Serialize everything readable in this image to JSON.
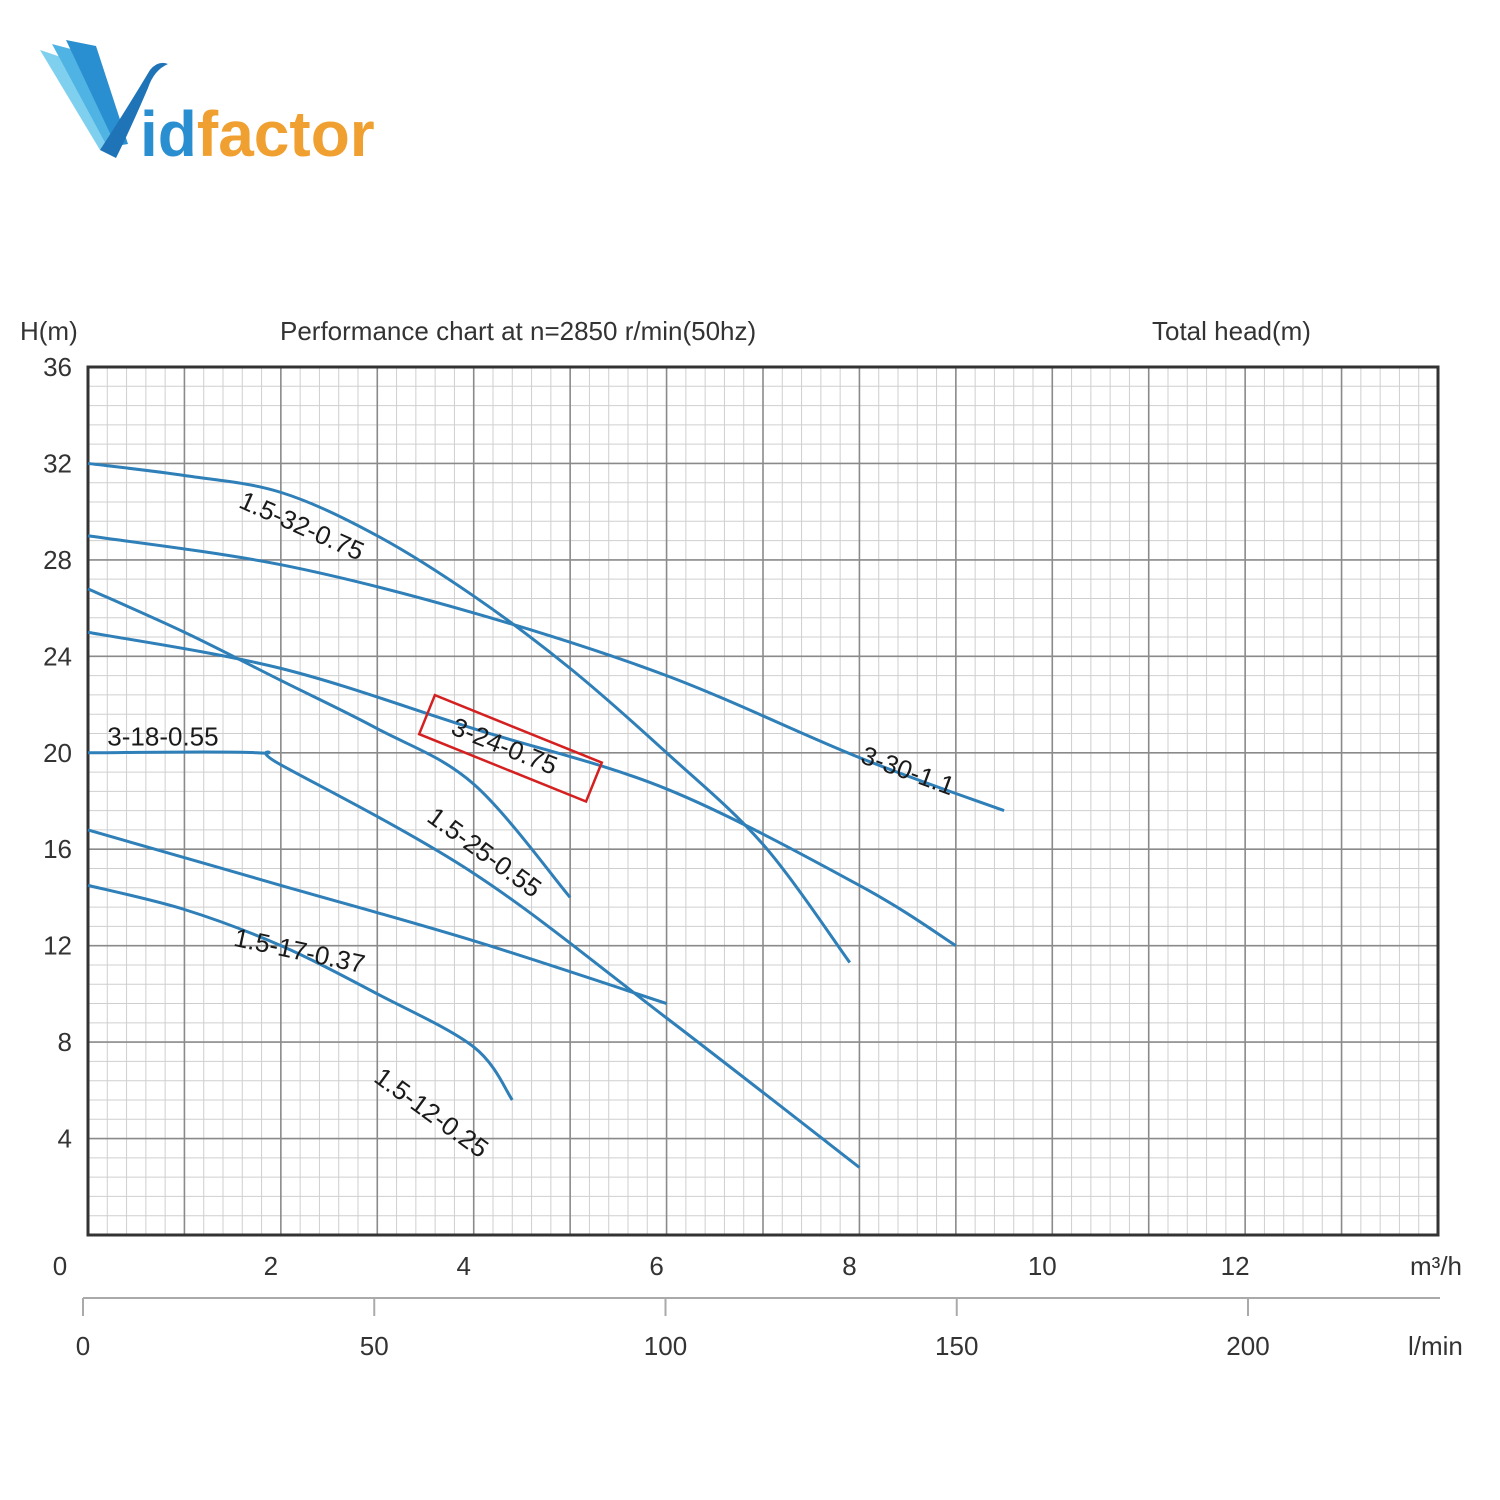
{
  "brand": {
    "logo_text": "Vidfactor",
    "color_blue": "#2a8fd0",
    "color_orange": "#f0a030"
  },
  "chart_data": {
    "type": "line",
    "title": "Performance chart at n=2850 r/min(50hz)",
    "ylabel": "H(m)",
    "right_label": "Total head(m)",
    "x_unit": "m³/h",
    "x2_unit": "l/min",
    "xlim": [
      0,
      14
    ],
    "ylim": [
      0,
      36
    ],
    "x_ticks": [
      0,
      2,
      4,
      6,
      8,
      10,
      12
    ],
    "y_ticks": [
      4,
      8,
      12,
      16,
      20,
      24,
      28,
      32,
      36
    ],
    "x2_ticks": [
      0,
      50,
      100,
      150,
      200
    ],
    "grid": true,
    "curve_color": "#2f7fb8",
    "highlight_color": "#d42020",
    "series": [
      {
        "name": "1.5-32-0.75",
        "points": [
          [
            0,
            32
          ],
          [
            1,
            31.5
          ],
          [
            2,
            30.8
          ],
          [
            3,
            29
          ],
          [
            4,
            26.5
          ],
          [
            5,
            23.5
          ],
          [
            6,
            20
          ],
          [
            7,
            16.2
          ],
          [
            7.9,
            11.3
          ]
        ]
      },
      {
        "name": "3-30-1.1",
        "points": [
          [
            0,
            29
          ],
          [
            2,
            27.8
          ],
          [
            4,
            25.8
          ],
          [
            6,
            23.2
          ],
          [
            8,
            19.8
          ],
          [
            9.5,
            17.6
          ]
        ]
      },
      {
        "name": "1.5-25-0.55",
        "points": [
          [
            0,
            26.8
          ],
          [
            1,
            25
          ],
          [
            2,
            23
          ],
          [
            3,
            21
          ],
          [
            4,
            18.7
          ],
          [
            5,
            14
          ]
        ]
      },
      {
        "name": "3-24-0.75",
        "points": [
          [
            0,
            25
          ],
          [
            2,
            23.5
          ],
          [
            4,
            21
          ],
          [
            6,
            18.5
          ],
          [
            8,
            14.5
          ],
          [
            9,
            12
          ]
        ]
      },
      {
        "name": "3-18-0.55",
        "points": [
          [
            0,
            20
          ],
          [
            1.75,
            20
          ],
          [
            2,
            19.5
          ],
          [
            4,
            15
          ],
          [
            6,
            9
          ],
          [
            8,
            2.8
          ]
        ]
      },
      {
        "name": "1.5-17-0.37",
        "points": [
          [
            0,
            16.8
          ],
          [
            2,
            14.5
          ],
          [
            4,
            12.2
          ],
          [
            6,
            9.6
          ]
        ]
      },
      {
        "name": "1.5-12-0.25",
        "points": [
          [
            0,
            14.5
          ],
          [
            1,
            13.5
          ],
          [
            2,
            12
          ],
          [
            3,
            10
          ],
          [
            4,
            7.8
          ],
          [
            4.4,
            5.6
          ]
        ]
      }
    ],
    "highlighted": "3-24-0.75"
  }
}
